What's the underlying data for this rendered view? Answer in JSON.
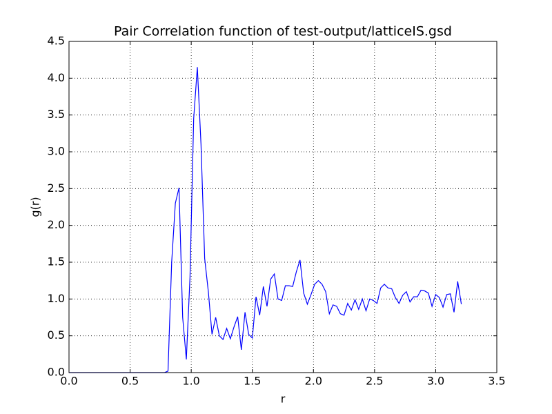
{
  "chart_data": {
    "type": "line",
    "title": "Pair Correlation function of test-output/latticeIS.gsd",
    "x_label": "r",
    "y_label": "g(r)",
    "grid": true,
    "xlim": [
      0,
      3.5
    ],
    "ylim": [
      0,
      4.5
    ],
    "xticks": [
      {
        "value": 0,
        "label": "0.0"
      },
      {
        "value": 0.5,
        "label": "0.5"
      },
      {
        "value": 1,
        "label": "1.0"
      },
      {
        "value": 1.5,
        "label": "1.5"
      },
      {
        "value": 2,
        "label": "2.0"
      },
      {
        "value": 2.5,
        "label": "2.5"
      },
      {
        "value": 3,
        "label": "3.0"
      },
      {
        "value": 3.5,
        "label": "3.5"
      }
    ],
    "yticks": [
      {
        "value": 0,
        "label": "0.0"
      },
      {
        "value": 0.5,
        "label": "0.5"
      },
      {
        "value": 1,
        "label": "1.0"
      },
      {
        "value": 1.5,
        "label": "1.5"
      },
      {
        "value": 2,
        "label": "2.0"
      },
      {
        "value": 2.5,
        "label": "2.5"
      },
      {
        "value": 3,
        "label": "3.0"
      },
      {
        "value": 3.5,
        "label": "3.5"
      },
      {
        "value": 4,
        "label": "4.0"
      },
      {
        "value": 4.5,
        "label": "4.5"
      }
    ],
    "x": [
      0,
      0.78,
      0.81,
      0.84,
      0.87,
      0.9,
      0.93,
      0.96,
      0.99,
      1.02,
      1.05,
      1.08,
      1.11,
      1.14,
      1.17,
      1.2,
      1.23,
      1.26,
      1.29,
      1.32,
      1.35,
      1.38,
      1.41,
      1.44,
      1.47,
      1.5,
      1.53,
      1.56,
      1.59,
      1.62,
      1.65,
      1.68,
      1.71,
      1.74,
      1.77,
      1.8,
      1.83,
      1.86,
      1.89,
      1.92,
      1.95,
      1.98,
      2.01,
      2.04,
      2.07,
      2.1,
      2.13,
      2.16,
      2.19,
      2.22,
      2.25,
      2.28,
      2.31,
      2.34,
      2.37,
      2.4,
      2.43,
      2.46,
      2.49,
      2.52,
      2.55,
      2.58,
      2.61,
      2.64,
      2.67,
      2.7,
      2.73,
      2.76,
      2.79,
      2.82,
      2.85,
      2.88,
      2.91,
      2.94,
      2.97,
      3.0,
      3.03,
      3.06,
      3.09,
      3.12,
      3.15,
      3.18,
      3.21
    ],
    "series": [
      {
        "color": "#0000ff",
        "values": [
          0,
          0,
          0.02,
          1.5,
          2.3,
          2.51,
          0.75,
          0.18,
          1.3,
          3.45,
          4.15,
          3.1,
          1.55,
          1.1,
          0.52,
          0.75,
          0.5,
          0.45,
          0.6,
          0.46,
          0.62,
          0.76,
          0.31,
          0.82,
          0.52,
          0.47,
          1.03,
          0.78,
          1.17,
          0.9,
          1.27,
          1.34,
          1.0,
          0.98,
          1.18,
          1.18,
          1.17,
          1.37,
          1.53,
          1.08,
          0.93,
          1.06,
          1.2,
          1.25,
          1.2,
          1.1,
          0.8,
          0.92,
          0.9,
          0.8,
          0.78,
          0.94,
          0.85,
          0.99,
          0.86,
          1.0,
          0.84,
          1.0,
          0.98,
          0.94,
          1.15,
          1.2,
          1.15,
          1.14,
          1.02,
          0.94,
          1.05,
          1.1,
          0.96,
          1.03,
          1.03,
          1.12,
          1.11,
          1.08,
          0.9,
          1.06,
          1.02,
          0.89,
          1.06,
          1.07,
          0.82,
          1.24,
          0.93
        ]
      }
    ]
  }
}
